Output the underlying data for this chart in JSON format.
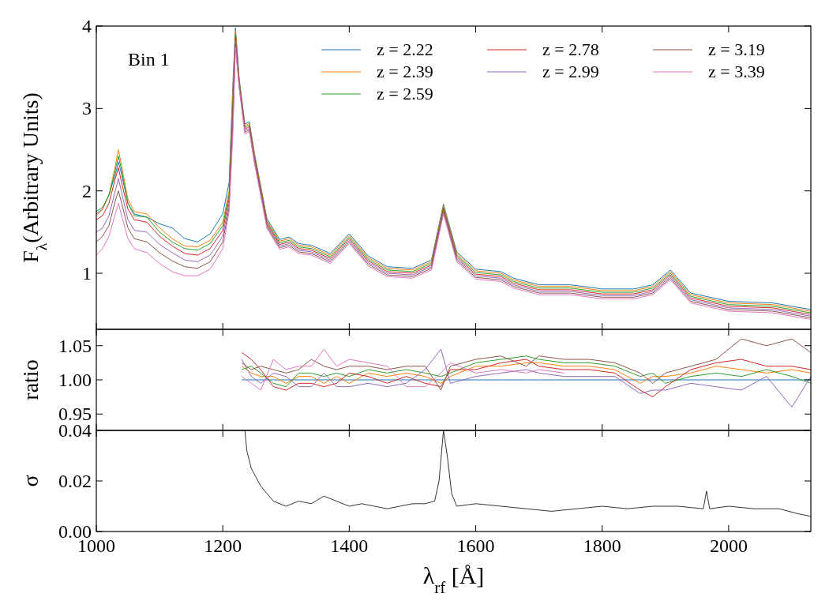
{
  "chart_data": [
    {
      "type": "line",
      "ylabel": "F$_{λ}$(Arbitrary Units)",
      "annotations": [
        "Bin 1"
      ],
      "legend": "top right",
      "xlim": [
        1000,
        2130
      ],
      "ylim": [
        0.32,
        4
      ],
      "xticks": [
        1000,
        1200,
        1400,
        1600,
        1800,
        2000
      ],
      "yticks": [
        1,
        2,
        3,
        4
      ],
      "tick_labels": "y",
      "x": [
        1000,
        1010,
        1020,
        1030,
        1035,
        1040,
        1050,
        1060,
        1080,
        1100,
        1120,
        1140,
        1160,
        1180,
        1200,
        1210,
        1216,
        1220,
        1226,
        1235,
        1242,
        1250,
        1270,
        1290,
        1305,
        1320,
        1340,
        1370,
        1400,
        1430,
        1460,
        1500,
        1530,
        1549,
        1570,
        1600,
        1640,
        1660,
        1700,
        1750,
        1800,
        1850,
        1880,
        1908,
        1940,
        2000,
        2070,
        2130
      ],
      "series": [
        {
          "name": "z = 2.22",
          "color": "#1f77b4",
          "values": [
            1.72,
            1.78,
            1.95,
            2.2,
            2.35,
            2.2,
            1.85,
            1.72,
            1.68,
            1.6,
            1.55,
            1.42,
            1.38,
            1.48,
            1.72,
            2.1,
            3.3,
            3.98,
            3.36,
            2.81,
            2.84,
            2.46,
            1.66,
            1.41,
            1.44,
            1.36,
            1.34,
            1.24,
            1.48,
            1.21,
            1.08,
            1.06,
            1.16,
            1.84,
            1.26,
            1.05,
            1.02,
            0.94,
            0.86,
            0.86,
            0.81,
            0.81,
            0.86,
            1.04,
            0.76,
            0.66,
            0.64,
            0.56
          ]
        },
        {
          "name": "z = 2.39",
          "color": "#ff7f0e",
          "values": [
            1.7,
            1.78,
            1.95,
            2.3,
            2.5,
            2.3,
            1.9,
            1.75,
            1.72,
            1.55,
            1.42,
            1.33,
            1.32,
            1.4,
            1.62,
            2.0,
            3.2,
            3.94,
            3.34,
            2.79,
            2.82,
            2.44,
            1.64,
            1.39,
            1.42,
            1.34,
            1.32,
            1.22,
            1.46,
            1.19,
            1.06,
            1.04,
            1.14,
            1.82,
            1.24,
            1.03,
            1.0,
            0.92,
            0.84,
            0.84,
            0.79,
            0.79,
            0.84,
            1.02,
            0.74,
            0.64,
            0.62,
            0.54
          ]
        },
        {
          "name": "z = 2.59",
          "color": "#2ca02c",
          "values": [
            1.75,
            1.8,
            1.95,
            2.25,
            2.42,
            2.25,
            1.85,
            1.7,
            1.68,
            1.5,
            1.38,
            1.3,
            1.28,
            1.36,
            1.58,
            1.95,
            3.1,
            3.9,
            3.32,
            2.77,
            2.8,
            2.42,
            1.62,
            1.37,
            1.4,
            1.32,
            1.3,
            1.2,
            1.44,
            1.17,
            1.04,
            1.02,
            1.12,
            1.8,
            1.22,
            1.01,
            0.98,
            0.9,
            0.82,
            0.82,
            0.77,
            0.77,
            0.82,
            1.0,
            0.72,
            0.62,
            0.6,
            0.52
          ]
        },
        {
          "name": "z = 2.78",
          "color": "#d62728",
          "values": [
            1.65,
            1.7,
            1.85,
            2.15,
            2.28,
            2.1,
            1.78,
            1.65,
            1.62,
            1.45,
            1.33,
            1.24,
            1.22,
            1.3,
            1.52,
            1.9,
            3.0,
            3.86,
            3.3,
            2.75,
            2.78,
            2.4,
            1.6,
            1.35,
            1.38,
            1.3,
            1.28,
            1.18,
            1.42,
            1.15,
            1.02,
            1.0,
            1.1,
            1.78,
            1.2,
            0.99,
            0.96,
            0.88,
            0.8,
            0.8,
            0.75,
            0.75,
            0.8,
            0.98,
            0.7,
            0.6,
            0.58,
            0.5
          ]
        },
        {
          "name": "z = 2.99",
          "color": "#9467bd",
          "values": [
            1.5,
            1.55,
            1.7,
            2.0,
            2.15,
            1.98,
            1.65,
            1.52,
            1.5,
            1.35,
            1.25,
            1.16,
            1.14,
            1.22,
            1.45,
            1.85,
            2.9,
            3.82,
            3.28,
            2.73,
            2.76,
            2.38,
            1.58,
            1.33,
            1.36,
            1.28,
            1.26,
            1.16,
            1.4,
            1.13,
            1.0,
            0.98,
            1.08,
            1.76,
            1.18,
            0.97,
            0.94,
            0.86,
            0.78,
            0.78,
            0.73,
            0.73,
            0.78,
            0.96,
            0.68,
            0.58,
            0.56,
            0.48
          ]
        },
        {
          "name": "z = 3.19",
          "color": "#8c564b",
          "values": [
            1.38,
            1.45,
            1.58,
            1.88,
            2.0,
            1.85,
            1.55,
            1.42,
            1.38,
            1.25,
            1.15,
            1.08,
            1.06,
            1.14,
            1.38,
            1.8,
            2.8,
            3.78,
            3.26,
            2.71,
            2.74,
            2.36,
            1.56,
            1.31,
            1.34,
            1.26,
            1.24,
            1.14,
            1.38,
            1.11,
            0.98,
            0.96,
            1.06,
            1.74,
            1.16,
            0.95,
            0.92,
            0.84,
            0.76,
            0.76,
            0.71,
            0.71,
            0.76,
            0.94,
            0.66,
            0.56,
            0.54,
            0.46
          ]
        },
        {
          "name": "z = 3.39",
          "color": "#e377c2",
          "values": [
            1.22,
            1.3,
            1.45,
            1.72,
            1.85,
            1.7,
            1.42,
            1.3,
            1.25,
            1.12,
            1.02,
            0.97,
            0.97,
            1.05,
            1.3,
            1.75,
            2.7,
            3.74,
            3.24,
            2.69,
            2.72,
            2.34,
            1.54,
            1.29,
            1.32,
            1.24,
            1.22,
            1.12,
            1.36,
            1.09,
            0.96,
            0.94,
            1.04,
            1.72,
            1.14,
            0.93,
            0.9,
            0.82,
            0.74,
            0.74,
            0.69,
            0.69,
            0.74,
            0.92,
            0.64,
            0.54,
            0.52,
            0.44
          ]
        }
      ]
    },
    {
      "type": "line",
      "ylabel": "ratio",
      "xlim": [
        1000,
        2130
      ],
      "ylim": [
        0.926,
        1.074
      ],
      "xticks": [
        1000,
        1200,
        1400,
        1600,
        1800,
        2000
      ],
      "yticks": [
        {
          "value": 0.95,
          "label": "0.95"
        },
        {
          "value": 1,
          "label": "1.00"
        },
        {
          "value": 1.05,
          "label": "1.05"
        }
      ],
      "tick_labels": "y",
      "x": [
        1230,
        1245,
        1260,
        1280,
        1300,
        1320,
        1340,
        1360,
        1380,
        1400,
        1430,
        1460,
        1490,
        1520,
        1545,
        1560,
        1600,
        1640,
        1680,
        1700,
        1740,
        1780,
        1820,
        1860,
        1880,
        1900,
        1940,
        1980,
        2020,
        2060,
        2100,
        2130
      ],
      "series": [
        {
          "color": "#1f77b4",
          "values": [
            1,
            1,
            1,
            1,
            1,
            1,
            1,
            1,
            1,
            1,
            1,
            1,
            1,
            1,
            1,
            1,
            1,
            1,
            1,
            1,
            1,
            1,
            1,
            1,
            1,
            1,
            1,
            1,
            1,
            1,
            1,
            1
          ]
        },
        {
          "color": "#ff7f0e",
          "values": [
            1.02,
            1.01,
            1.005,
            1.005,
            0.995,
            1.005,
            1.005,
            0.995,
            1.005,
            0.995,
            1.01,
            1.005,
            1.01,
            1.005,
            0.995,
            1.005,
            1.02,
            1.02,
            1.025,
            1.025,
            1.02,
            1.02,
            1.015,
            0.995,
            1.005,
            1.005,
            1.01,
            1.02,
            1.015,
            1.01,
            1.015,
            1.01
          ]
        },
        {
          "color": "#2ca02c",
          "values": [
            1.015,
            1.02,
            1.01,
            0.995,
            0.99,
            1.01,
            1.01,
            1.005,
            1.01,
            1.005,
            1.015,
            1.01,
            1.015,
            1.01,
            1.005,
            1.01,
            1.025,
            1.03,
            1.035,
            1.03,
            1.025,
            1.025,
            1.02,
            1.005,
            1.01,
            0.995,
            1.005,
            1.01,
            1.005,
            1.015,
            1.005,
            0.995
          ]
        },
        {
          "color": "#d62728",
          "values": [
            1.04,
            1.03,
            1.015,
            0.99,
            0.985,
            0.995,
            0.995,
            0.99,
            0.995,
            1.01,
            1.005,
            0.995,
            1.005,
            0.995,
            0.99,
            1.015,
            1.015,
            1.025,
            1.03,
            1.02,
            1.015,
            1.015,
            1.01,
            0.985,
            0.975,
            0.99,
            1.015,
            1.025,
            1.03,
            1.02,
            1.02,
            1.015
          ]
        },
        {
          "color": "#9467bd",
          "values": [
            1.03,
            1.005,
            0.995,
            1.01,
            1.005,
            0.99,
            0.99,
            1.01,
            0.99,
            0.99,
            0.995,
            0.99,
            0.995,
            1.015,
            1.045,
            0.995,
            1.005,
            1.01,
            1.015,
            1.01,
            1.005,
            1.005,
            1.005,
            0.98,
            0.985,
            0.985,
            0.995,
            0.99,
            0.985,
            1.005,
            0.96,
            1.005
          ]
        },
        {
          "color": "#8c564b",
          "values": [
            1.025,
            1.015,
            1.02,
            1.015,
            1.01,
            1.015,
            1.03,
            1.02,
            1.015,
            1.02,
            1.02,
            1.015,
            1.02,
            1.02,
            0.985,
            1.02,
            1.03,
            1.035,
            1.02,
            1.035,
            1.03,
            1.03,
            1.025,
            1.01,
            0.995,
            1.01,
            1.02,
            1.03,
            1.06,
            1.05,
            1.06,
            1.04
          ]
        },
        {
          "color": "#e377c2",
          "values": [
            1.005,
            0.995,
            0.985,
            1.03,
            1.015,
            1.02,
            1.02,
            1.045,
            1.02,
            1.03,
            1.025,
            1.02,
            0.99,
            0.99,
            1.01,
            1.025,
            1.01,
            1.015,
            1.01,
            1.015,
            1.01,
            null,
            null,
            null,
            null,
            null,
            null,
            null,
            null,
            null,
            null,
            null
          ]
        }
      ]
    },
    {
      "type": "line",
      "ylabel": "σ",
      "xlabel": "λ$_{rf}$ [Å]",
      "xlim": [
        1000,
        2130
      ],
      "ylim": [
        0,
        0.04
      ],
      "xticks": [
        1000,
        1200,
        1400,
        1600,
        1800,
        2000
      ],
      "yticks": [
        {
          "value": 0,
          "label": "0.00"
        },
        {
          "value": 0.02,
          "label": "0.02"
        },
        {
          "value": 0.04,
          "label": "0.04"
        }
      ],
      "x": [
        1235,
        1238,
        1245,
        1260,
        1280,
        1300,
        1320,
        1340,
        1360,
        1380,
        1400,
        1420,
        1440,
        1460,
        1480,
        1500,
        1520,
        1535,
        1542,
        1549,
        1555,
        1562,
        1570,
        1600,
        1640,
        1680,
        1720,
        1760,
        1800,
        1840,
        1880,
        1920,
        1960,
        1965,
        1970,
        2000,
        2040,
        2080,
        2110,
        2130
      ],
      "series": [
        {
          "color": "#000000",
          "values": [
            0.04,
            0.032,
            0.025,
            0.018,
            0.012,
            0.01,
            0.012,
            0.011,
            0.014,
            0.012,
            0.01,
            0.011,
            0.01,
            0.009,
            0.01,
            0.011,
            0.011,
            0.012,
            0.02,
            0.04,
            0.03,
            0.015,
            0.01,
            0.011,
            0.01,
            0.009,
            0.008,
            0.009,
            0.01,
            0.009,
            0.01,
            0.01,
            0.009,
            0.016,
            0.009,
            0.01,
            0.009,
            0.009,
            0.007,
            0.006
          ]
        }
      ]
    }
  ]
}
